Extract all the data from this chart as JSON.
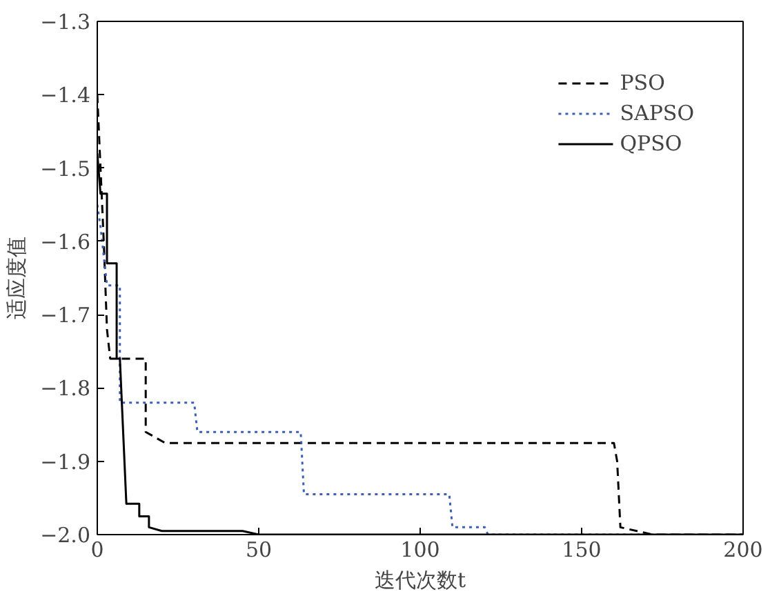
{
  "chart_data": {
    "type": "line",
    "xlabel": "迭代次数t",
    "ylabel": "适应度值",
    "xlim": [
      0,
      200
    ],
    "ylim": [
      -2.0,
      -1.3
    ],
    "xticks": [
      0,
      50,
      100,
      150,
      200
    ],
    "yticks": [
      {
        "value": -2.0,
        "label": "−2.0"
      },
      {
        "value": -1.9,
        "label": "−1.9"
      },
      {
        "value": -1.8,
        "label": "−1.8"
      },
      {
        "value": -1.7,
        "label": "−1.7"
      },
      {
        "value": -1.6,
        "label": "−1.6"
      },
      {
        "value": -1.5,
        "label": "−1.5"
      },
      {
        "value": -1.4,
        "label": "−1.4"
      },
      {
        "value": -1.3,
        "label": "−1.3"
      }
    ],
    "grid": false,
    "legend": "top right",
    "marker": "none",
    "series": [
      {
        "name": "PSO",
        "color": "#000000",
        "line_style": "dashed",
        "x": [
          0,
          1,
          2,
          3,
          4,
          15,
          15,
          21,
          160,
          161,
          162,
          172,
          200
        ],
        "values": [
          -1.4,
          -1.5,
          -1.6,
          -1.72,
          -1.76,
          -1.76,
          -1.86,
          -1.875,
          -1.875,
          -1.9,
          -1.99,
          -2.0,
          -2.0
        ]
      },
      {
        "name": "SAPSO",
        "color": "#3a5fb5",
        "line_style": "dotted",
        "x": [
          0,
          1,
          3,
          7,
          7,
          30,
          31,
          63,
          64,
          109,
          110,
          120,
          121,
          200
        ],
        "values": [
          -1.55,
          -1.58,
          -1.66,
          -1.66,
          -1.82,
          -1.82,
          -1.86,
          -1.86,
          -1.945,
          -1.945,
          -1.99,
          -1.99,
          -2.0,
          -2.0
        ]
      },
      {
        "name": "QPSO",
        "color": "#000000",
        "line_style": "solid",
        "x": [
          0,
          1,
          3,
          3,
          6,
          6,
          7,
          9,
          13,
          13,
          16,
          16,
          20,
          45,
          50,
          200
        ],
        "values": [
          -1.48,
          -1.535,
          -1.535,
          -1.63,
          -1.63,
          -1.76,
          -1.76,
          -1.958,
          -1.958,
          -1.975,
          -1.975,
          -1.99,
          -1.995,
          -1.995,
          -2.0,
          -2.0
        ]
      }
    ]
  }
}
